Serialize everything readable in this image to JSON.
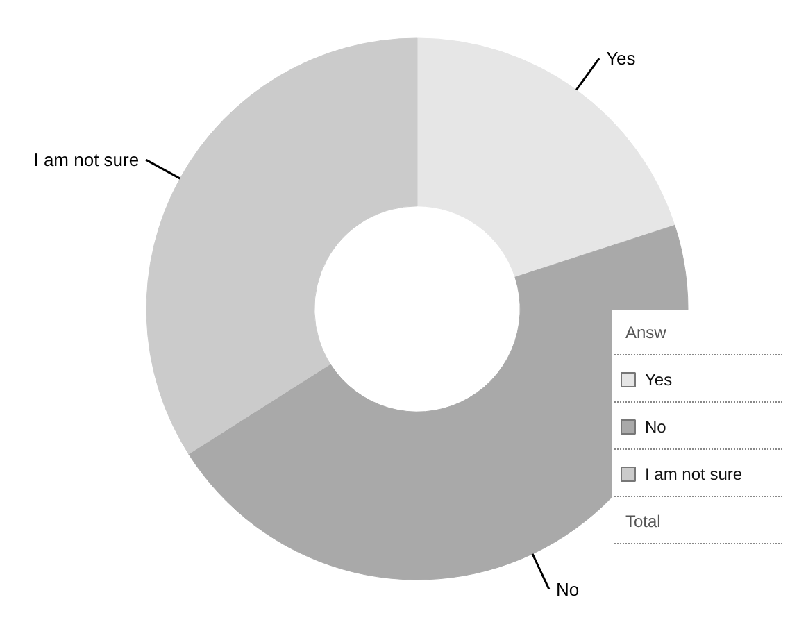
{
  "chart_data": {
    "type": "donut",
    "categories": [
      "Yes",
      "No",
      "I am not sure"
    ],
    "values": [
      20,
      46,
      34
    ],
    "colors": [
      "#e6e6e6",
      "#a9a9a9",
      "#cbcbcb"
    ],
    "legend": "right",
    "annotations": [
      "Answ",
      "Total"
    ]
  }
}
